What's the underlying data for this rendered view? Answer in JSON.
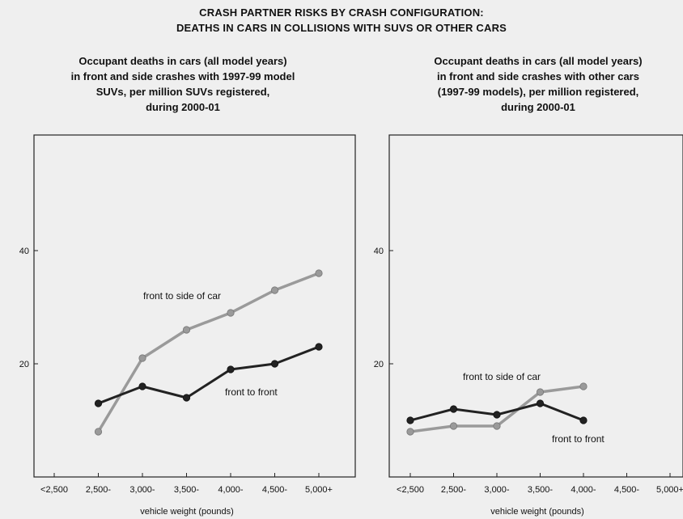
{
  "title_line1": "CRASH PARTNER RISKS BY CRASH CONFIGURATION:",
  "title_line2": "DEATHS IN CARS IN COLLISIONS WITH SUVS OR OTHER CARS",
  "colors": {
    "front_to_front": "#222222",
    "front_to_side": "#9a9a9a",
    "background": "#efefef"
  },
  "chart_data": [
    {
      "type": "line",
      "title": [
        "Occupant deaths in cars (all model years)",
        "in front and side crashes with 1997-99 model",
        "SUVs, per million SUVs registered,",
        "during 2000-01"
      ],
      "xlabel": "vehicle weight (pounds)",
      "ylabel": "",
      "categories": [
        "<2,500",
        "2,500-",
        "3,000-",
        "3,500-",
        "4,000-",
        "4,500-",
        "5,000+"
      ],
      "y_ticks": [
        20,
        40
      ],
      "ylim": [
        0,
        60
      ],
      "grid": false,
      "series": [
        {
          "name": "front to side of car",
          "color_key": "front_to_side",
          "values": [
            null,
            8,
            21,
            26,
            29,
            33,
            36
          ]
        },
        {
          "name": "front to front",
          "color_key": "front_to_front",
          "values": [
            null,
            13,
            16,
            14,
            19,
            20,
            23
          ]
        }
      ]
    },
    {
      "type": "line",
      "title": [
        "Occupant deaths in cars (all model years)",
        "in front and side crashes with other cars",
        "(1997-99 models), per million registered,",
        "during 2000-01"
      ],
      "xlabel": "vehicle weight (pounds)",
      "ylabel": "",
      "categories": [
        "<2,500",
        "2,500-",
        "3,000-",
        "3,500-",
        "4,000-",
        "4,500-",
        "5,000+"
      ],
      "y_ticks": [
        20,
        40
      ],
      "ylim": [
        0,
        60
      ],
      "grid": false,
      "series": [
        {
          "name": "front to side of car",
          "color_key": "front_to_side",
          "values": [
            8,
            9,
            9,
            15,
            16,
            null,
            null
          ]
        },
        {
          "name": "front to front",
          "color_key": "front_to_front",
          "values": [
            10,
            12,
            11,
            13,
            10,
            null,
            null
          ]
        }
      ]
    }
  ]
}
